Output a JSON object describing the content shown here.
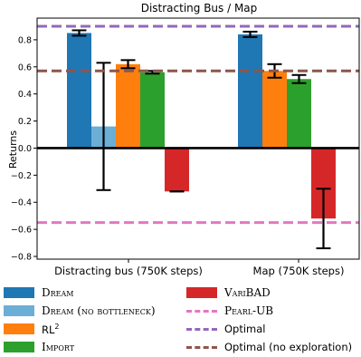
{
  "chart_data": {
    "type": "bar",
    "title": "Distracting Bus / Map",
    "ylabel": "Returns",
    "xlabel": "",
    "ylim": [
      -0.82,
      0.96
    ],
    "yticks": [
      0.8,
      0.6,
      0.4,
      0.2,
      0.0,
      -0.2,
      -0.4,
      -0.6,
      -0.8
    ],
    "ytick_labels": [
      "0.8",
      "0.6",
      "0.4",
      "0.2",
      "0.0",
      "−0.2",
      "−0.4",
      "−0.6",
      "−0.8"
    ],
    "categories": [
      "Distracting bus (750K steps)",
      "Map (750K steps)"
    ],
    "series": [
      {
        "name": "Dream",
        "color": "#1f77b4",
        "values": [
          0.85,
          0.84
        ],
        "errors": [
          0.02,
          0.02
        ]
      },
      {
        "name": "Dream (no bottleneck)",
        "color": "#6baed6",
        "values": [
          0.16,
          null
        ],
        "errors": [
          0.47,
          null
        ]
      },
      {
        "name": "RL",
        "name_sup": "2",
        "color": "#ff7f0e",
        "values": [
          0.62,
          0.57
        ],
        "errors": [
          0.03,
          0.05
        ]
      },
      {
        "name": "Import",
        "color": "#2ca02c",
        "values": [
          0.56,
          0.51
        ],
        "errors": [
          0.01,
          0.03
        ]
      },
      {
        "name": "VariBAD",
        "color": "#d62728",
        "values": [
          -0.32,
          -0.52
        ],
        "errors": [
          0.0,
          0.22
        ]
      }
    ],
    "reference_lines": [
      {
        "name": "Pearl-UB",
        "color": "#e377c2",
        "value": -0.55
      },
      {
        "name": "Optimal",
        "color": "#9467bd",
        "value": 0.9
      },
      {
        "name": "Optimal (no exploration)",
        "color": "#8c564b",
        "value": 0.57
      }
    ],
    "legend_placement": "bottom",
    "grid": false
  }
}
